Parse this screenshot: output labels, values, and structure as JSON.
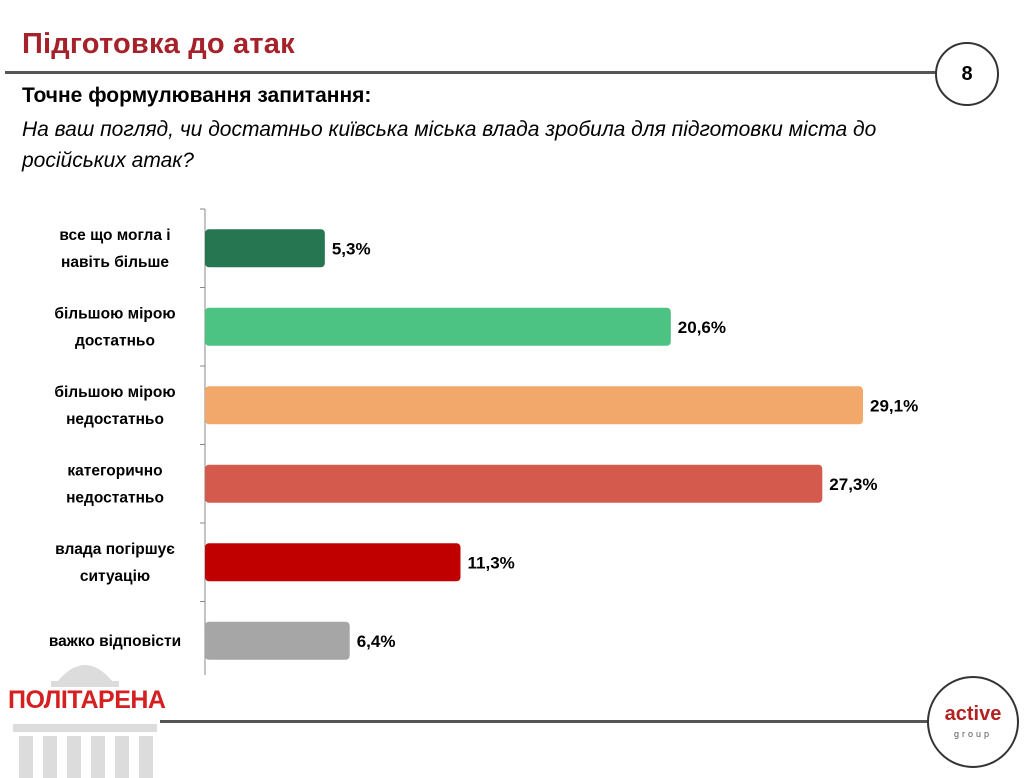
{
  "header": {
    "title": "Підготовка до атак",
    "page_number": "8"
  },
  "question": {
    "label": "Точне формулювання запитання:",
    "text": "На ваш погляд, чи достатньо київська міська влада зробила для підготовки міста до російських атак?"
  },
  "chart_data": {
    "type": "bar",
    "orientation": "horizontal",
    "categories": [
      [
        "все що могла і",
        "навіть більше"
      ],
      [
        "більшою мірою",
        "достатньо"
      ],
      [
        "більшою мірою",
        "недостатньо"
      ],
      [
        "категорично",
        "недостатньо"
      ],
      [
        "влада погіршує",
        "ситуацію"
      ],
      [
        "важко відповісти"
      ]
    ],
    "values": [
      5.3,
      20.6,
      29.1,
      27.3,
      11.3,
      6.4
    ],
    "value_labels": [
      "5,3%",
      "20,6%",
      "29,1%",
      "27,3%",
      "11,3%",
      "6,4%"
    ],
    "colors": [
      "#267651",
      "#4cc283",
      "#f2a86a",
      "#d55a4e",
      "#c00000",
      "#a6a6a6"
    ],
    "xlim": [
      0,
      30
    ],
    "unit": "%"
  },
  "footer": {
    "left_logo": "ПОЛІТАРЕНА",
    "right_brand": "active",
    "right_brand_sub": "group"
  }
}
